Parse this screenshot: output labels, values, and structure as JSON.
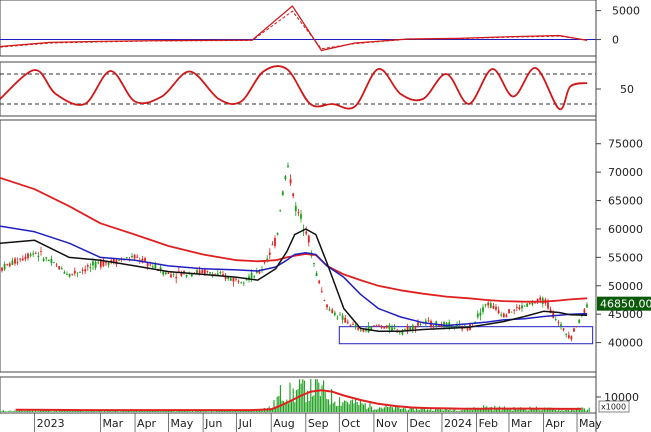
{
  "chart_data": [
    {
      "type": "line",
      "panel": "macd",
      "y_ticks": [
        "5000",
        "0"
      ],
      "ylim": [
        -2500,
        6500
      ],
      "grid": false,
      "x": [
        "2022-12-01",
        "2023-01-15",
        "2023-03-01",
        "2023-04-15",
        "2023-06-01",
        "2023-07-15",
        "2023-08-20",
        "2023-09-15",
        "2023-10-15",
        "2023-12-01",
        "2024-01-15",
        "2024-03-01",
        "2024-04-15",
        "2024-05-10"
      ],
      "series": [
        {
          "values": [
            -1200,
            -500,
            -300,
            -200,
            -150,
            -100,
            5800,
            -1900,
            -600,
            100,
            200,
            500,
            700,
            -150
          ],
          "color": "#d01818"
        },
        {
          "values": [
            -1300,
            -600,
            -400,
            -250,
            -200,
            -150,
            4900,
            -1600,
            -700,
            50,
            150,
            400,
            600,
            -100
          ],
          "color": "#d01818"
        }
      ]
    },
    {
      "type": "line",
      "panel": "stochastic",
      "y_ticks": [
        "50"
      ],
      "ylim": [
        0,
        100
      ],
      "reference_lines": [
        20,
        80
      ],
      "x": [
        "2022-12-01",
        "2023-01-01",
        "2023-01-20",
        "2023-02-15",
        "2023-03-10",
        "2023-04-01",
        "2023-04-25",
        "2023-05-20",
        "2023-06-15",
        "2023-07-05",
        "2023-07-25",
        "2023-08-15",
        "2023-09-05",
        "2023-09-25",
        "2023-10-15",
        "2023-11-05",
        "2023-11-25",
        "2023-12-15",
        "2024-01-05",
        "2024-01-25",
        "2024-02-15",
        "2024-03-05",
        "2024-03-25",
        "2024-04-15",
        "2024-04-25",
        "2024-05-10"
      ],
      "series": [
        {
          "values": [
            30,
            88,
            40,
            20,
            86,
            25,
            35,
            85,
            30,
            25,
            85,
            90,
            20,
            20,
            15,
            90,
            40,
            30,
            80,
            20,
            90,
            35,
            92,
            10,
            55,
            62
          ],
          "color": "#d01818"
        }
      ]
    },
    {
      "type": "candlestick",
      "panel": "price",
      "y_ticks": [
        "75000",
        "70000",
        "65000",
        "60000",
        "55000",
        "50000",
        "45000",
        "40000"
      ],
      "ylim": [
        35000,
        79000
      ],
      "last_price_label": "46850.00",
      "x_ticks": [
        "2023",
        "Mar",
        "Apr",
        "May",
        "Jun",
        "Jul",
        "Aug",
        "Sep",
        "Oct",
        "Nov",
        "Dec",
        "2024",
        "Feb",
        "Mar",
        "Apr",
        "May"
      ],
      "x": [
        "2022-12-01",
        "2023-01-01",
        "2023-02-01",
        "2023-03-01",
        "2023-04-01",
        "2023-05-01",
        "2023-06-01",
        "2023-07-01",
        "2023-07-20",
        "2023-08-05",
        "2023-08-15",
        "2023-08-22",
        "2023-09-01",
        "2023-09-10",
        "2023-09-20",
        "2023-10-05",
        "2023-10-20",
        "2023-11-05",
        "2023-11-25",
        "2023-12-15",
        "2024-01-05",
        "2024-01-25",
        "2024-02-10",
        "2024-02-25",
        "2024-03-15",
        "2024-04-01",
        "2024-04-15",
        "2024-04-25",
        "2024-05-10"
      ],
      "series": [
        {
          "name": "",
          "values": [
            53000,
            56000,
            52000,
            54000,
            55000,
            52000,
            52500,
            51000,
            52000,
            58000,
            72000,
            64000,
            60000,
            52000,
            46000,
            44000,
            42000,
            43000,
            42000,
            43500,
            43000,
            42500,
            47000,
            45000,
            46500,
            47500,
            43000,
            41000,
            46850
          ],
          "color": "#1a9e1a",
          "kind": "close"
        },
        {
          "name": "",
          "values": [
            69000,
            67000,
            64000,
            61000,
            59000,
            57000,
            55500,
            54500,
            54300,
            54500,
            55000,
            55300,
            55600,
            55400,
            53500,
            52000,
            51000,
            50000,
            49200,
            48600,
            48100,
            47800,
            47500,
            47300,
            47200,
            47200,
            47400,
            47600,
            47800
          ],
          "color": "#e02020",
          "kind": "ma_long"
        },
        {
          "name": "",
          "values": [
            60500,
            59500,
            57500,
            55000,
            54500,
            53500,
            53000,
            52800,
            52600,
            53300,
            54500,
            55500,
            55800,
            55500,
            53500,
            51500,
            48500,
            46000,
            44500,
            43500,
            43000,
            43300,
            43600,
            44000,
            44200,
            44600,
            44800,
            45000,
            45100
          ],
          "color": "#2020c0",
          "kind": "ma_mid"
        },
        {
          "name": "",
          "values": [
            57500,
            58000,
            55000,
            54500,
            53500,
            52500,
            52000,
            51500,
            51000,
            53000,
            56000,
            59000,
            60000,
            59000,
            54000,
            46000,
            42500,
            42000,
            42000,
            42300,
            42500,
            42700,
            43200,
            43700,
            44600,
            45500,
            45300,
            44900,
            44800
          ],
          "color": "#111111",
          "kind": "ma_short"
        }
      ],
      "support_box": {
        "x_start": "2023-10-01",
        "x_end": "2024-05-15",
        "y_low": 39800,
        "y_high": 42800
      }
    },
    {
      "type": "bar",
      "panel": "volume",
      "y_ticks": [
        "10000"
      ],
      "unit_label": "x1000",
      "ylim": [
        0,
        22000
      ],
      "x": [
        "2022-12-15",
        "2023-01-15",
        "2023-02-15",
        "2023-03-15",
        "2023-04-15",
        "2023-05-15",
        "2023-06-15",
        "2023-07-15",
        "2023-08-01",
        "2023-08-10",
        "2023-08-20",
        "2023-08-28",
        "2023-09-05",
        "2023-09-15",
        "2023-09-25",
        "2023-10-05",
        "2023-10-20",
        "2023-11-05",
        "2023-11-20",
        "2023-12-05",
        "2023-12-20",
        "2024-01-05",
        "2024-01-20",
        "2024-02-05",
        "2024-02-20",
        "2024-03-05",
        "2024-03-20",
        "2024-04-05",
        "2024-04-20",
        "2024-05-05"
      ],
      "values": [
        900,
        1200,
        800,
        1100,
        1400,
        900,
        1000,
        1200,
        3500,
        15000,
        14000,
        18000,
        21000,
        16000,
        11000,
        9000,
        6000,
        4000,
        3000,
        2500,
        2200,
        2000,
        1800,
        3800,
        3000,
        2500,
        2800,
        2300,
        1500,
        2500
      ],
      "series": [
        {
          "name": "",
          "values": [
            1500,
            1400,
            1300,
            1300,
            1300,
            1300,
            1300,
            1300,
            1800,
            4500,
            8000,
            11000,
            13500,
            14500,
            13500,
            11000,
            8000,
            5500,
            4000,
            3000,
            2600,
            2400,
            2200,
            2200,
            2300,
            2300,
            2300,
            2200,
            2100,
            2100
          ],
          "color": "#e02020",
          "kind": "vol_ma"
        }
      ]
    }
  ]
}
